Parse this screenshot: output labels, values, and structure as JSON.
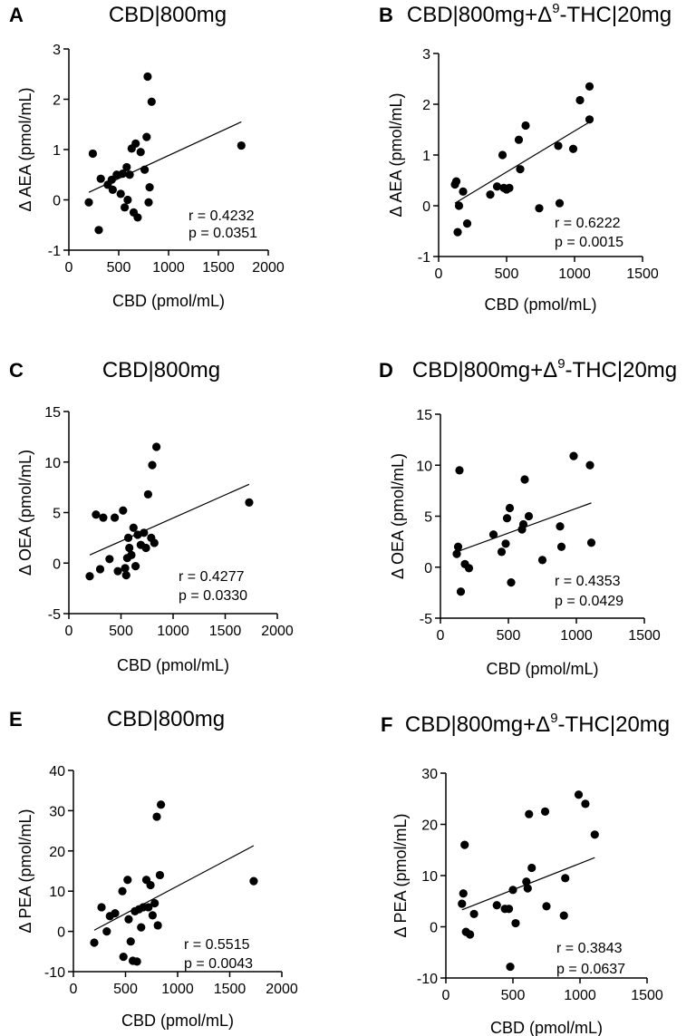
{
  "chart_data": [
    {
      "panel": "A",
      "type": "scatter",
      "title": "CBD|800mg",
      "xlabel": "CBD (pmol/mL)",
      "ylabel": "Δ AEA (pmol/mL)",
      "xlim": [
        0,
        2000
      ],
      "ylim": [
        -1,
        3
      ],
      "xticks": [
        0,
        500,
        1000,
        1500,
        2000
      ],
      "yticks": [
        -1,
        0,
        1,
        2,
        3
      ],
      "points": [
        [
          200,
          -0.05
        ],
        [
          240,
          0.92
        ],
        [
          300,
          -0.6
        ],
        [
          320,
          0.42
        ],
        [
          390,
          0.3
        ],
        [
          430,
          0.4
        ],
        [
          440,
          0.2
        ],
        [
          480,
          0.5
        ],
        [
          520,
          0.12
        ],
        [
          540,
          0.52
        ],
        [
          560,
          -0.15
        ],
        [
          580,
          0.65
        ],
        [
          590,
          0.0
        ],
        [
          610,
          0.5
        ],
        [
          630,
          1.02
        ],
        [
          650,
          -0.25
        ],
        [
          670,
          1.12
        ],
        [
          690,
          -0.35
        ],
        [
          720,
          0.95
        ],
        [
          760,
          0.6
        ],
        [
          780,
          1.25
        ],
        [
          790,
          2.45
        ],
        [
          800,
          -0.05
        ],
        [
          810,
          0.25
        ],
        [
          830,
          1.95
        ],
        [
          1730,
          1.08
        ]
      ],
      "fit_line": {
        "x": [
          200,
          1730
        ],
        "y": [
          0.15,
          1.55
        ]
      },
      "stats": {
        "r": "r = 0.4232",
        "p": "p = 0.0351"
      }
    },
    {
      "panel": "B",
      "type": "scatter",
      "title": "CBD|800mg+Δ",
      "title_sup": "9",
      "title_end": "-THC|20mg",
      "xlabel": "CBD (pmol/mL)",
      "ylabel": "Δ AEA (pmol/mL)",
      "xlim": [
        0,
        1500
      ],
      "ylim": [
        -1,
        3
      ],
      "xticks": [
        0,
        500,
        1000,
        1500
      ],
      "yticks": [
        -1,
        0,
        1,
        2,
        3
      ],
      "points": [
        [
          120,
          0.42
        ],
        [
          130,
          0.48
        ],
        [
          140,
          -0.52
        ],
        [
          150,
          0.0
        ],
        [
          180,
          0.28
        ],
        [
          210,
          -0.35
        ],
        [
          380,
          0.22
        ],
        [
          430,
          0.38
        ],
        [
          470,
          1.0
        ],
        [
          480,
          0.35
        ],
        [
          500,
          0.32
        ],
        [
          520,
          0.35
        ],
        [
          590,
          1.3
        ],
        [
          600,
          0.72
        ],
        [
          640,
          1.58
        ],
        [
          740,
          -0.05
        ],
        [
          880,
          1.18
        ],
        [
          890,
          0.05
        ],
        [
          990,
          1.12
        ],
        [
          1040,
          2.08
        ],
        [
          1110,
          2.35
        ],
        [
          1110,
          1.7
        ]
      ],
      "fit_line": {
        "x": [
          120,
          1110
        ],
        "y": [
          0.05,
          1.65
        ]
      },
      "stats": {
        "r": "r = 0.6222",
        "p": "p = 0.0015"
      }
    },
    {
      "panel": "C",
      "type": "scatter",
      "title": "CBD|800mg",
      "xlabel": "CBD (pmol/mL)",
      "ylabel": "Δ OEA (pmol/mL)",
      "xlim": [
        0,
        2000
      ],
      "ylim": [
        -5,
        15
      ],
      "xticks": [
        0,
        500,
        1000,
        1500,
        2000
      ],
      "yticks": [
        -5,
        0,
        5,
        10,
        15
      ],
      "points": [
        [
          200,
          -1.3
        ],
        [
          260,
          4.8
        ],
        [
          300,
          -0.6
        ],
        [
          330,
          4.5
        ],
        [
          390,
          0.4
        ],
        [
          440,
          4.5
        ],
        [
          470,
          -0.8
        ],
        [
          520,
          5.2
        ],
        [
          540,
          -0.5
        ],
        [
          550,
          -1.2
        ],
        [
          560,
          0.5
        ],
        [
          570,
          2.5
        ],
        [
          580,
          1.5
        ],
        [
          600,
          0.8
        ],
        [
          620,
          3.5
        ],
        [
          640,
          -0.3
        ],
        [
          660,
          2.8
        ],
        [
          690,
          1.8
        ],
        [
          720,
          3.0
        ],
        [
          740,
          1.5
        ],
        [
          760,
          6.8
        ],
        [
          790,
          2.5
        ],
        [
          800,
          9.7
        ],
        [
          820,
          2.0
        ],
        [
          840,
          11.5
        ],
        [
          1730,
          6.0
        ]
      ],
      "fit_line": {
        "x": [
          200,
          1730
        ],
        "y": [
          0.8,
          7.8
        ]
      },
      "stats": {
        "r": "r = 0.4277",
        "p": "p = 0.0330"
      }
    },
    {
      "panel": "D",
      "type": "scatter",
      "title": "CBD|800mg+Δ",
      "title_sup": "9",
      "title_end": "-THC|20mg",
      "xlabel": "CBD (pmol/mL)",
      "ylabel": "Δ OEA (pmol/mL)",
      "xlim": [
        0,
        1500
      ],
      "ylim": [
        -5,
        15
      ],
      "xticks": [
        0,
        500,
        1000,
        1500
      ],
      "yticks": [
        -5,
        0,
        5,
        10,
        15
      ],
      "points": [
        [
          120,
          1.3
        ],
        [
          130,
          2.0
        ],
        [
          140,
          9.5
        ],
        [
          150,
          -2.4
        ],
        [
          180,
          0.3
        ],
        [
          210,
          -0.1
        ],
        [
          390,
          3.2
        ],
        [
          450,
          1.5
        ],
        [
          480,
          2.3
        ],
        [
          490,
          4.8
        ],
        [
          510,
          5.8
        ],
        [
          520,
          -1.5
        ],
        [
          600,
          3.7
        ],
        [
          610,
          4.2
        ],
        [
          620,
          8.6
        ],
        [
          650,
          5.0
        ],
        [
          750,
          0.7
        ],
        [
          880,
          4.0
        ],
        [
          890,
          2.0
        ],
        [
          980,
          10.9
        ],
        [
          1100,
          10.0
        ],
        [
          1110,
          2.4
        ]
      ],
      "fit_line": {
        "x": [
          120,
          1110
        ],
        "y": [
          1.5,
          6.3
        ]
      },
      "stats": {
        "r": "r = 0.4353",
        "p": "p = 0.0429"
      }
    },
    {
      "panel": "E",
      "type": "scatter",
      "title": "CBD|800mg",
      "xlabel": "CBD (pmol/mL)",
      "ylabel": "Δ PEA (pmol/mL)",
      "xlim": [
        0,
        2000
      ],
      "ylim": [
        -10,
        40
      ],
      "xticks": [
        0,
        500,
        1000,
        1500,
        2000
      ],
      "yticks": [
        -10,
        0,
        10,
        20,
        30,
        40
      ],
      "points": [
        [
          200,
          -2.8
        ],
        [
          270,
          6.0
        ],
        [
          320,
          0.0
        ],
        [
          350,
          3.8
        ],
        [
          400,
          4.5
        ],
        [
          470,
          10.0
        ],
        [
          480,
          -6.3
        ],
        [
          520,
          12.8
        ],
        [
          530,
          3.0
        ],
        [
          550,
          -2.5
        ],
        [
          570,
          -7.3
        ],
        [
          590,
          5.0
        ],
        [
          610,
          -7.5
        ],
        [
          630,
          5.5
        ],
        [
          650,
          1.0
        ],
        [
          670,
          6.0
        ],
        [
          700,
          12.8
        ],
        [
          720,
          6.0
        ],
        [
          740,
          11.5
        ],
        [
          760,
          4.0
        ],
        [
          780,
          7.0
        ],
        [
          800,
          28.5
        ],
        [
          810,
          1.5
        ],
        [
          830,
          14.0
        ],
        [
          840,
          31.5
        ],
        [
          1730,
          12.5
        ]
      ],
      "fit_line": {
        "x": [
          200,
          1730
        ],
        "y": [
          0.3,
          21.3
        ]
      },
      "stats": {
        "r": "r = 0.5515",
        "p": "p = 0.0043"
      }
    },
    {
      "panel": "F",
      "type": "scatter",
      "title": "CBD|800mg+Δ",
      "title_sup": "9",
      "title_end": "-THC|20mg",
      "xlabel": "CBD (pmol/mL)",
      "ylabel": "Δ PEA (pmol/mL)",
      "xlim": [
        0,
        1500
      ],
      "ylim": [
        -10,
        30
      ],
      "xticks": [
        0,
        500,
        1000,
        1500
      ],
      "yticks": [
        -10,
        0,
        10,
        20,
        30
      ],
      "points": [
        [
          120,
          4.5
        ],
        [
          130,
          6.5
        ],
        [
          140,
          16.0
        ],
        [
          150,
          -1.0
        ],
        [
          180,
          -1.5
        ],
        [
          210,
          2.5
        ],
        [
          380,
          4.2
        ],
        [
          440,
          3.5
        ],
        [
          470,
          3.5
        ],
        [
          480,
          -7.8
        ],
        [
          500,
          7.2
        ],
        [
          520,
          0.7
        ],
        [
          600,
          8.8
        ],
        [
          610,
          7.5
        ],
        [
          620,
          22.0
        ],
        [
          640,
          11.5
        ],
        [
          740,
          22.5
        ],
        [
          750,
          4.0
        ],
        [
          880,
          2.2
        ],
        [
          890,
          9.5
        ],
        [
          990,
          25.8
        ],
        [
          1040,
          24.0
        ],
        [
          1110,
          18.0
        ]
      ],
      "fit_line": {
        "x": [
          120,
          1110
        ],
        "y": [
          3.3,
          13.5
        ]
      },
      "stats": {
        "r": "r = 0.3843",
        "p": "p = 0.0637"
      }
    }
  ]
}
